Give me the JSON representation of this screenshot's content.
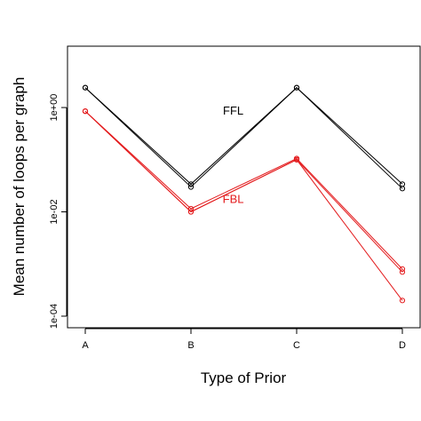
{
  "chart_data": {
    "type": "line",
    "title": "",
    "xlabel": "Type of Prior",
    "ylabel": "Mean number of loops per graph",
    "yscale": "log10",
    "ylim": [
      6e-05,
      15
    ],
    "y_ticks": [
      {
        "value": 0.0001,
        "label": "1e-04"
      },
      {
        "value": 0.01,
        "label": "1e-02"
      },
      {
        "value": 1,
        "label": "1e+00"
      }
    ],
    "categories": [
      "A",
      "B",
      "C",
      "D"
    ],
    "grid": false,
    "legend": "none",
    "series": [
      {
        "name": "",
        "group": "FFL",
        "color": "#000000",
        "values": [
          2.4,
          0.034,
          2.4,
          0.034
        ]
      },
      {
        "name": "",
        "group": "FFL",
        "color": "#000000",
        "values": [
          2.4,
          0.03,
          2.4,
          0.028
        ]
      },
      {
        "name": "",
        "group": "FBL",
        "color": "#e31a1c",
        "values": [
          0.85,
          0.0115,
          0.105,
          0.0008
        ]
      },
      {
        "name": "",
        "group": "FBL",
        "color": "#e31a1c",
        "values": [
          0.85,
          0.01,
          0.1,
          0.0007
        ]
      },
      {
        "name": "",
        "group": "FBL",
        "color": "#e31a1c",
        "values": [
          0.85,
          0.01,
          0.1,
          0.0002
        ]
      }
    ],
    "annotations": [
      {
        "text": "FFL",
        "color": "#000000",
        "x": 1.4,
        "y": 0.9
      },
      {
        "text": "FBL",
        "color": "#e31a1c",
        "x": 1.4,
        "y": 0.018
      }
    ]
  }
}
